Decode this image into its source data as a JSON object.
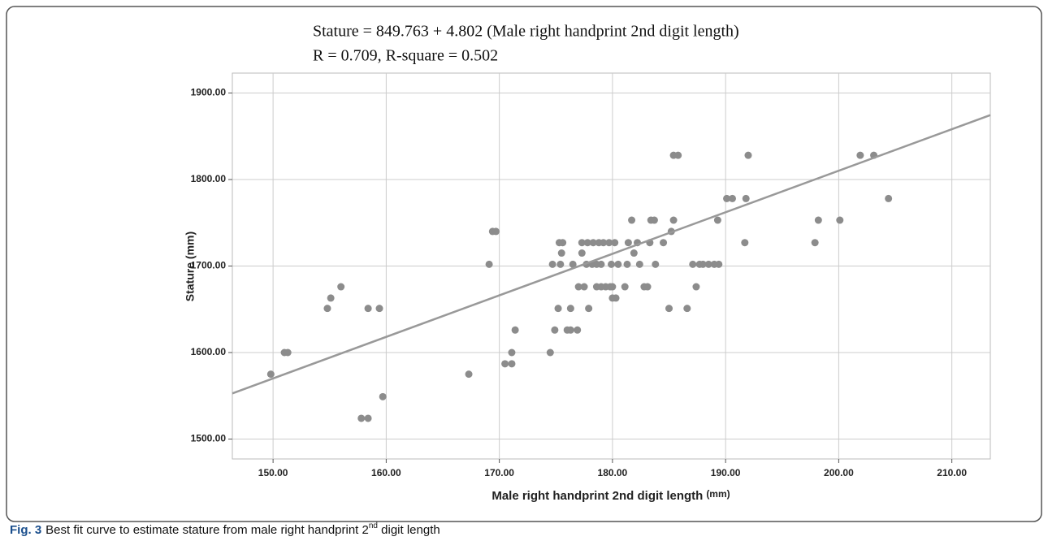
{
  "chart_data": {
    "type": "scatter",
    "title": "Stature = 849.763 + 4.802 (Male right handprint 2nd digit length)",
    "subtitle": "R = 0.709, R-square = 0.502",
    "x_label": "Male right handprint 2nd digit length",
    "x_label_unit": "(mm)",
    "y_label": "Stature (mm)",
    "color": "#8c8c8c",
    "grid": true,
    "xlim": [
      146.4,
      213.4
    ],
    "ylim": [
      1477,
      1923
    ],
    "xticks": [
      {
        "value": 150,
        "label": "150.00"
      },
      {
        "value": 160,
        "label": "160.00"
      },
      {
        "value": 170,
        "label": "170.00"
      },
      {
        "value": 180,
        "label": "180.00"
      },
      {
        "value": 190,
        "label": "190.00"
      },
      {
        "value": 200,
        "label": "200.00"
      },
      {
        "value": 210,
        "label": "210.00"
      }
    ],
    "yticks": [
      {
        "value": 1500,
        "label": "1500.00"
      },
      {
        "value": 1600,
        "label": "1600.00"
      },
      {
        "value": 1700,
        "label": "1700.00"
      },
      {
        "value": 1800,
        "label": "1800.00"
      },
      {
        "value": 1900,
        "label": "1900.00"
      }
    ],
    "x": [
      149.8,
      151.0,
      151.3,
      154.8,
      155.1,
      156.0,
      157.8,
      158.4,
      158.4,
      159.4,
      159.7,
      167.3,
      169.1,
      169.4,
      169.7,
      170.5,
      171.1,
      171.1,
      171.4,
      174.5,
      174.7,
      174.9,
      175.2,
      175.3,
      175.6,
      175.4,
      175.5,
      176.0,
      176.3,
      176.3,
      176.5,
      176.9,
      177.0,
      177.3,
      177.3,
      177.5,
      177.7,
      177.8,
      177.9,
      178.2,
      178.6,
      179.0,
      178.3,
      178.8,
      179.2,
      178.6,
      179.0,
      179.4,
      179.7,
      179.9,
      179.8,
      180.0,
      180.3,
      180.0,
      180.2,
      180.5,
      181.1,
      181.3,
      181.4,
      181.7,
      182.2,
      181.9,
      182.4,
      182.8,
      183.1,
      183.3,
      183.4,
      183.7,
      183.8,
      184.5,
      185.0,
      185.2,
      185.4,
      185.8,
      185.4,
      186.6,
      187.4,
      187.1,
      187.7,
      188.0,
      188.5,
      189.0,
      189.4,
      189.3,
      190.1,
      190.6,
      191.7,
      191.8,
      192.0,
      197.9,
      198.2,
      200.1,
      204.4,
      201.9,
      203.1
    ],
    "values": [
      1575,
      1600,
      1600,
      1651,
      1663,
      1676,
      1524,
      1524,
      1651,
      1651,
      1549,
      1575,
      1702,
      1740,
      1740,
      1587,
      1587,
      1600,
      1626,
      1600,
      1702,
      1626,
      1651,
      1727,
      1727,
      1702,
      1715,
      1626,
      1626,
      1651,
      1702,
      1626,
      1676,
      1727,
      1715,
      1676,
      1702,
      1727,
      1651,
      1702,
      1702,
      1702,
      1727,
      1727,
      1727,
      1676,
      1676,
      1676,
      1727,
      1702,
      1676,
      1663,
      1663,
      1676,
      1727,
      1702,
      1676,
      1702,
      1727,
      1753,
      1727,
      1715,
      1702,
      1676,
      1676,
      1727,
      1753,
      1753,
      1702,
      1727,
      1651,
      1740,
      1828,
      1828,
      1753,
      1651,
      1676,
      1702,
      1702,
      1702,
      1702,
      1702,
      1702,
      1753,
      1778,
      1778,
      1727,
      1778,
      1828,
      1727,
      1753,
      1753,
      1778,
      1828,
      1828
    ],
    "fit_line": {
      "color": "#999999",
      "x": [
        146.4,
        213.4
      ],
      "values": [
        1552.8,
        1874.5
      ]
    }
  },
  "caption": {
    "label": "Fig. 3",
    "text": "Best fit curve to estimate stature from male right handprint 2",
    "sup": "nd",
    "tail": " digit length"
  }
}
